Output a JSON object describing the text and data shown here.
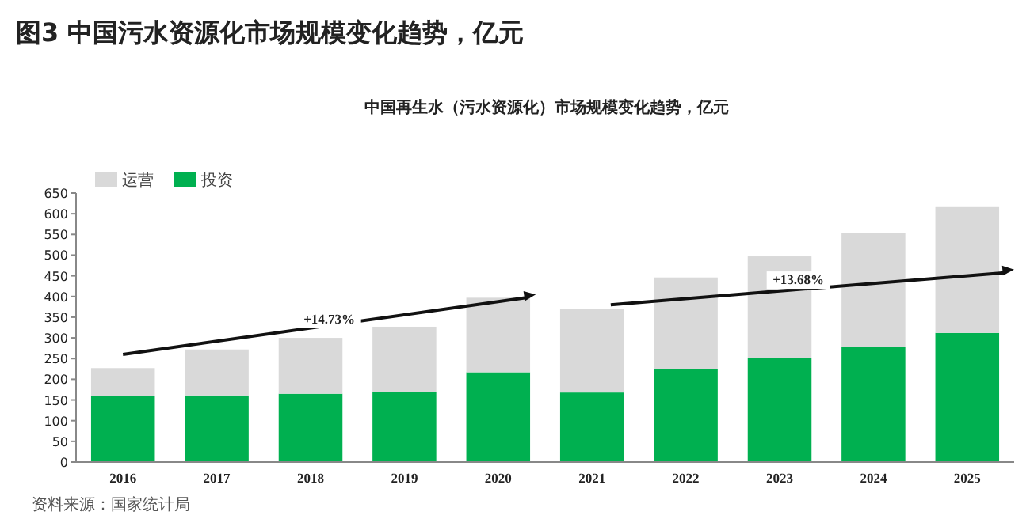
{
  "chart_data": {
    "type": "bar",
    "stacked": true,
    "title": "图3 中国污水资源化市场规模变化趋势，亿元",
    "subtitle": "中国再生水（污水资源化）市场规模变化趋势，亿元",
    "categories": [
      "2016",
      "2017",
      "2018",
      "2019",
      "2020",
      "2021",
      "2022",
      "2023",
      "2024",
      "2025"
    ],
    "series": [
      {
        "name": "投资",
        "color": "#00b050",
        "values": [
          159,
          161,
          165,
          170,
          217,
          168,
          224,
          251,
          279,
          312
        ]
      },
      {
        "name": "运营",
        "color": "#d9d9d9",
        "values": [
          68,
          111,
          135,
          157,
          180,
          201,
          222,
          246,
          275,
          304
        ]
      }
    ],
    "ylim": [
      0,
      650
    ],
    "yticks": [
      0,
      50,
      100,
      150,
      200,
      250,
      300,
      350,
      400,
      450,
      500,
      550,
      600,
      650
    ],
    "legend": "top left",
    "grid": false,
    "annotations": [
      "+14.73%",
      "+13.68%",
      "资料来源：国家统计局"
    ]
  }
}
